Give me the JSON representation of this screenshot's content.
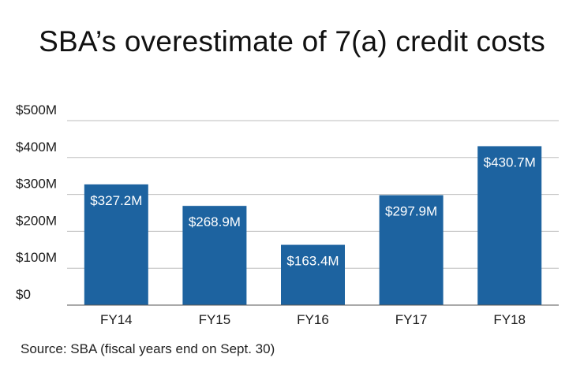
{
  "title": "SBA’s overestimate of 7(a) credit costs",
  "source": "Source: SBA (fiscal years end on Sept. 30)",
  "colors": {
    "bar": "#1d63a0",
    "grid": "#bdbdbd",
    "axis": "#555555"
  },
  "chart_data": {
    "type": "bar",
    "categories": [
      "FY14",
      "FY15",
      "FY16",
      "FY17",
      "FY18"
    ],
    "values": [
      327.2,
      268.9,
      163.4,
      297.9,
      430.7
    ],
    "value_labels": [
      "$327.2M",
      "$268.9M",
      "$163.4M",
      "$297.9M",
      "$430.7M"
    ],
    "ylim": [
      0,
      500
    ],
    "yticks": [
      0,
      100,
      200,
      300,
      400,
      500
    ],
    "ytick_labels": [
      "$0",
      "$100M",
      "$200M",
      "$300M",
      "$400M",
      "$500M"
    ],
    "grid": true,
    "xlabel": "",
    "ylabel": ""
  }
}
